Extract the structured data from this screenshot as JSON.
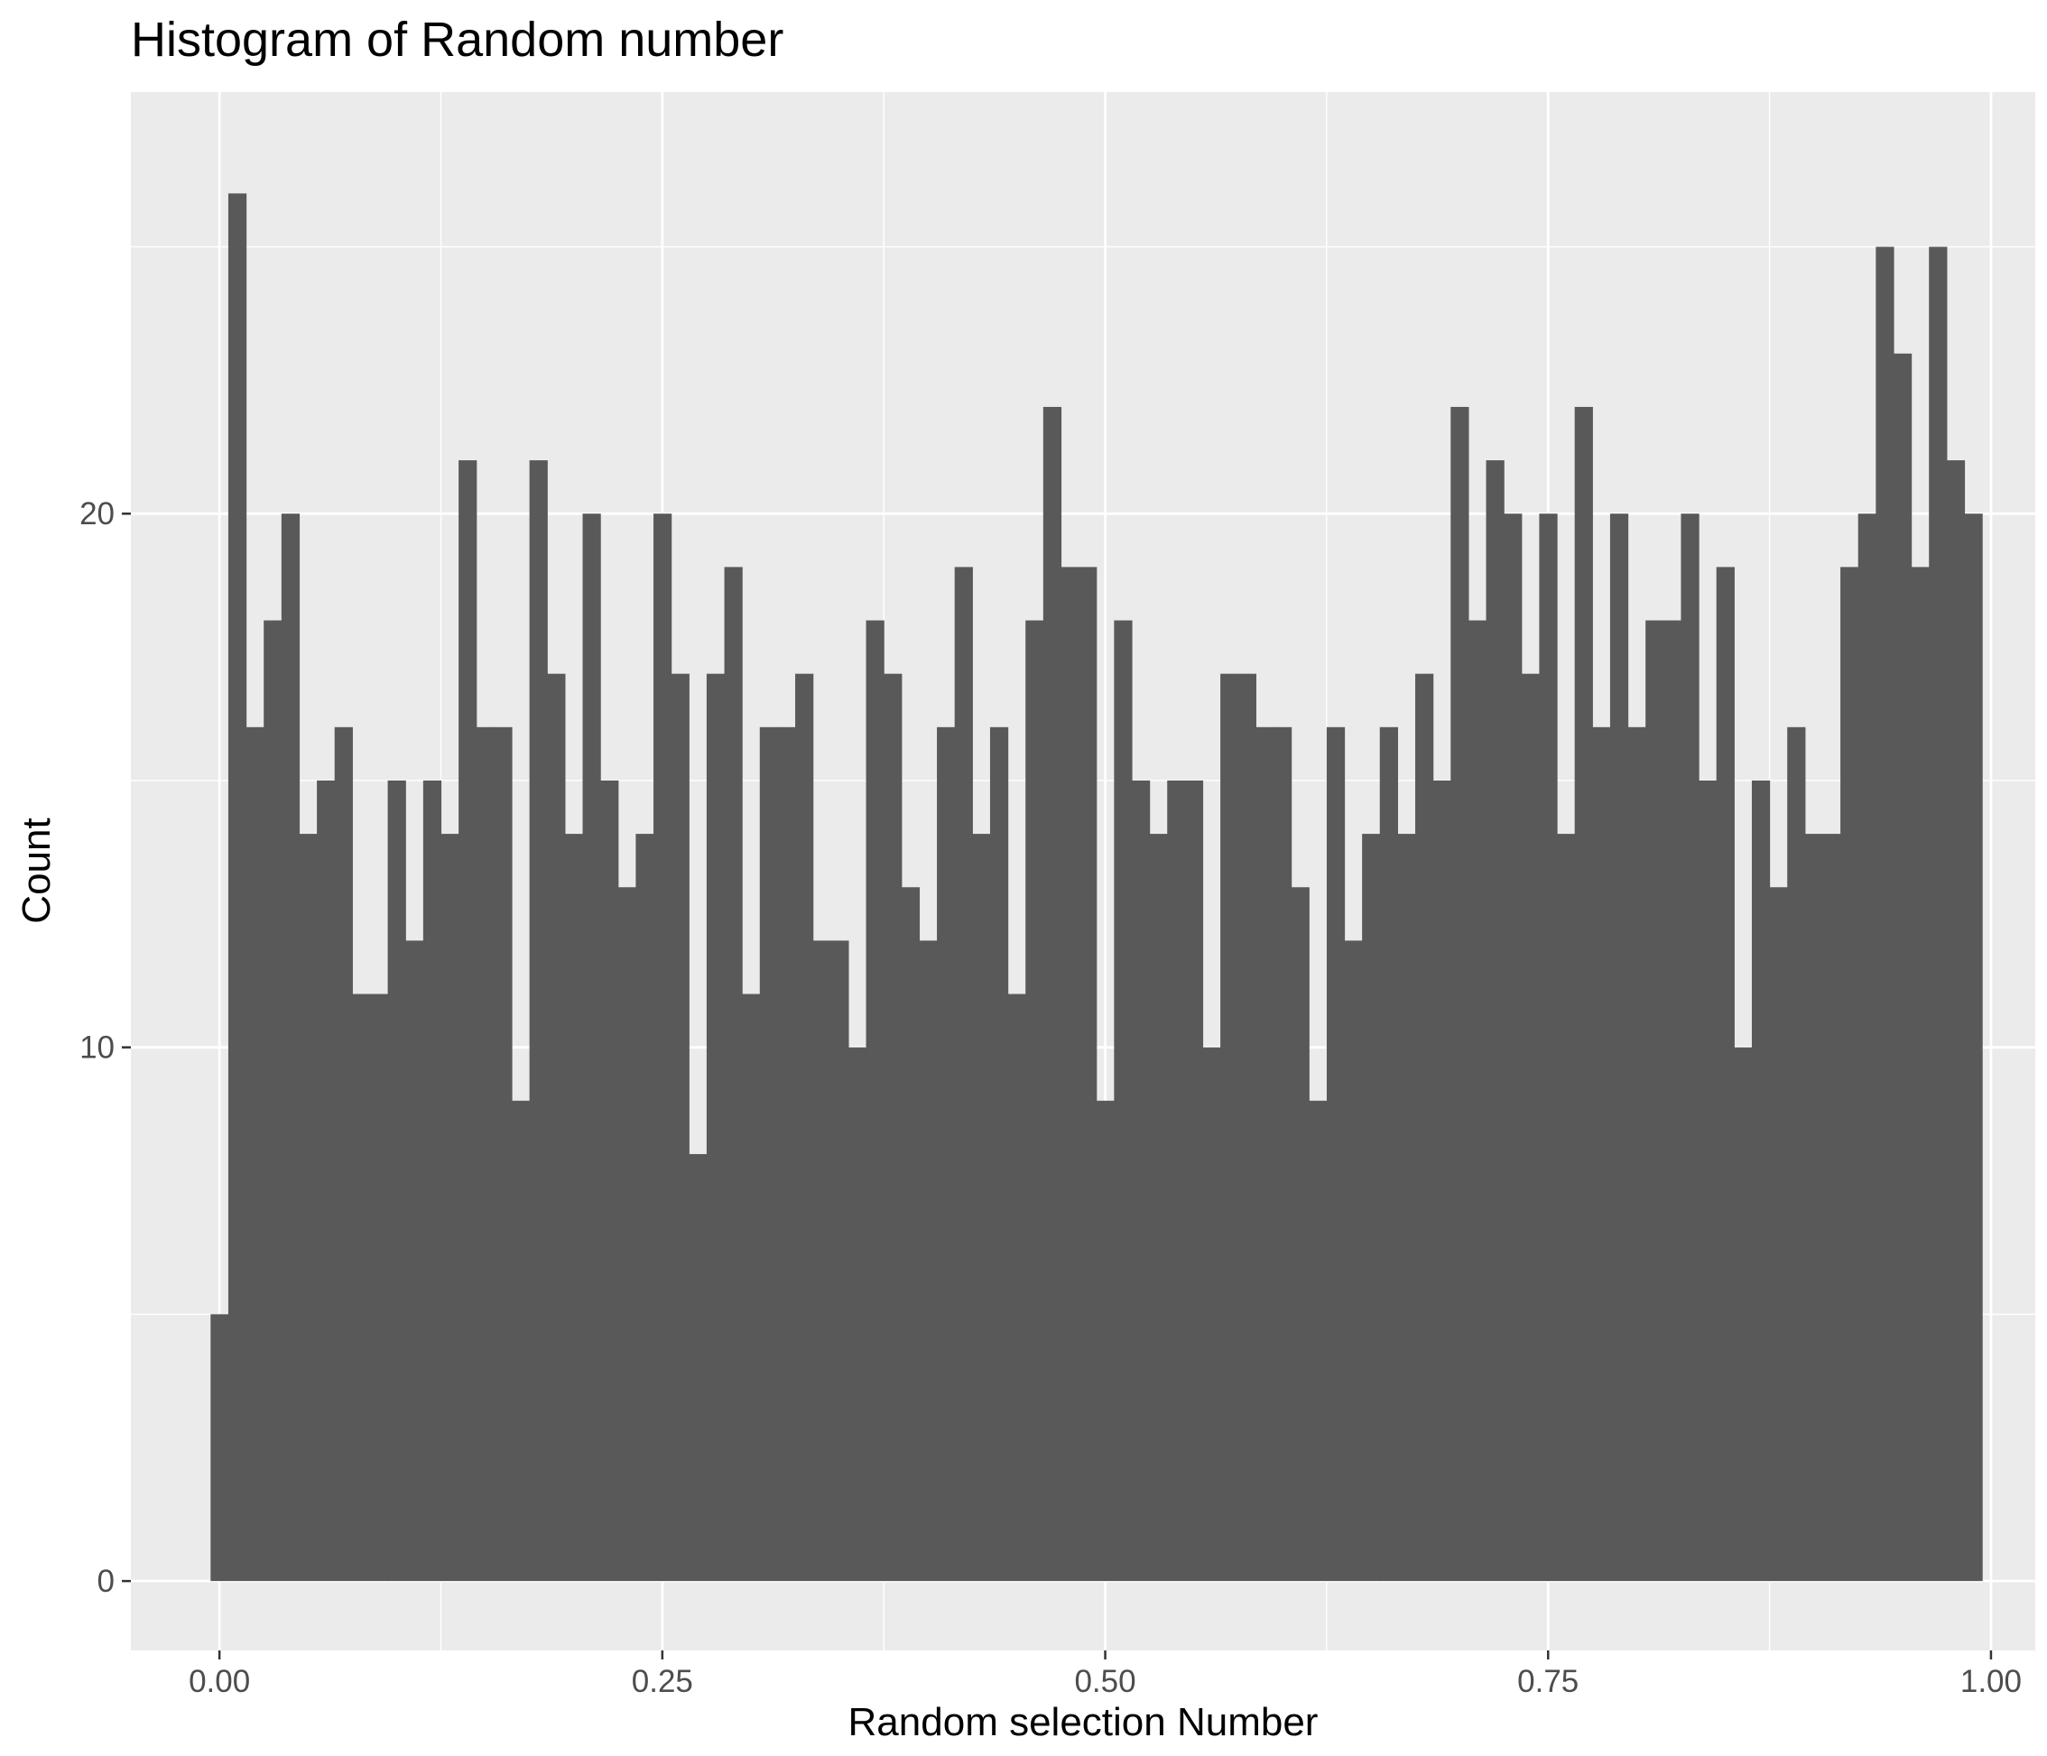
{
  "chart_data": {
    "type": "bar",
    "title": "Histogram of Random number",
    "xlabel": "Random selection Number",
    "ylabel": "Count",
    "xlim": [
      -0.05,
      1.025
    ],
    "ylim": [
      -1.3,
      27.9
    ],
    "x_ticks": [
      0,
      0.25,
      0.5,
      0.75,
      1
    ],
    "x_tick_labels": [
      "0.00",
      "0.25",
      "0.50",
      "0.75",
      "1.00"
    ],
    "y_ticks": [
      0,
      10,
      20
    ],
    "y_tick_labels": [
      "0",
      "10",
      "20"
    ],
    "x_minor_gridlines": [
      0.125,
      0.375,
      0.625,
      0.875
    ],
    "y_minor_gridlines": [
      5,
      15,
      25
    ],
    "bin_width": 0.01,
    "bin_start": -0.005,
    "values": [
      5,
      26,
      16,
      18,
      20,
      14,
      15,
      16,
      11,
      11,
      15,
      12,
      15,
      14,
      21,
      16,
      16,
      9,
      21,
      17,
      14,
      20,
      15,
      13,
      14,
      20,
      17,
      8,
      17,
      19,
      11,
      16,
      16,
      17,
      12,
      12,
      10,
      18,
      17,
      13,
      12,
      16,
      19,
      14,
      16,
      11,
      18,
      22,
      19,
      19,
      9,
      18,
      15,
      14,
      15,
      15,
      10,
      17,
      17,
      16,
      16,
      13,
      9,
      16,
      12,
      14,
      16,
      14,
      17,
      15,
      22,
      18,
      21,
      20,
      17,
      20,
      14,
      22,
      16,
      20,
      16,
      18,
      18,
      20,
      15,
      19,
      10,
      15,
      13,
      16,
      14,
      14,
      19,
      20,
      25,
      23,
      19,
      25,
      21,
      20
    ],
    "grid": true,
    "legend": "none",
    "colors": {
      "bar": "#595959",
      "panel": "#ebebeb",
      "grid": "#ffffff",
      "tick": "#333333",
      "tick_label": "#4d4d4d",
      "text": "#000000"
    }
  }
}
